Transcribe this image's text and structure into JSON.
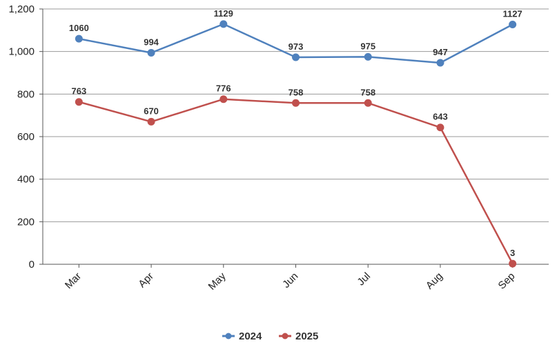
{
  "chart_data": {
    "type": "line",
    "categories": [
      "Mar",
      "Apr",
      "May",
      "Jun",
      "Jul",
      "Aug",
      "Sep"
    ],
    "series": [
      {
        "name": "2024",
        "color": "#4f81bd",
        "values": [
          1060,
          994,
          1129,
          973,
          975,
          947,
          1127
        ]
      },
      {
        "name": "2025",
        "color": "#c0504d",
        "values": [
          763,
          670,
          776,
          758,
          758,
          643,
          3
        ]
      }
    ],
    "y_ticks": [
      "0",
      "200",
      "400",
      "600",
      "800",
      "1,000",
      "1,200"
    ],
    "ylim": [
      0,
      1200
    ],
    "grid": true,
    "legend": "bottom-center"
  }
}
